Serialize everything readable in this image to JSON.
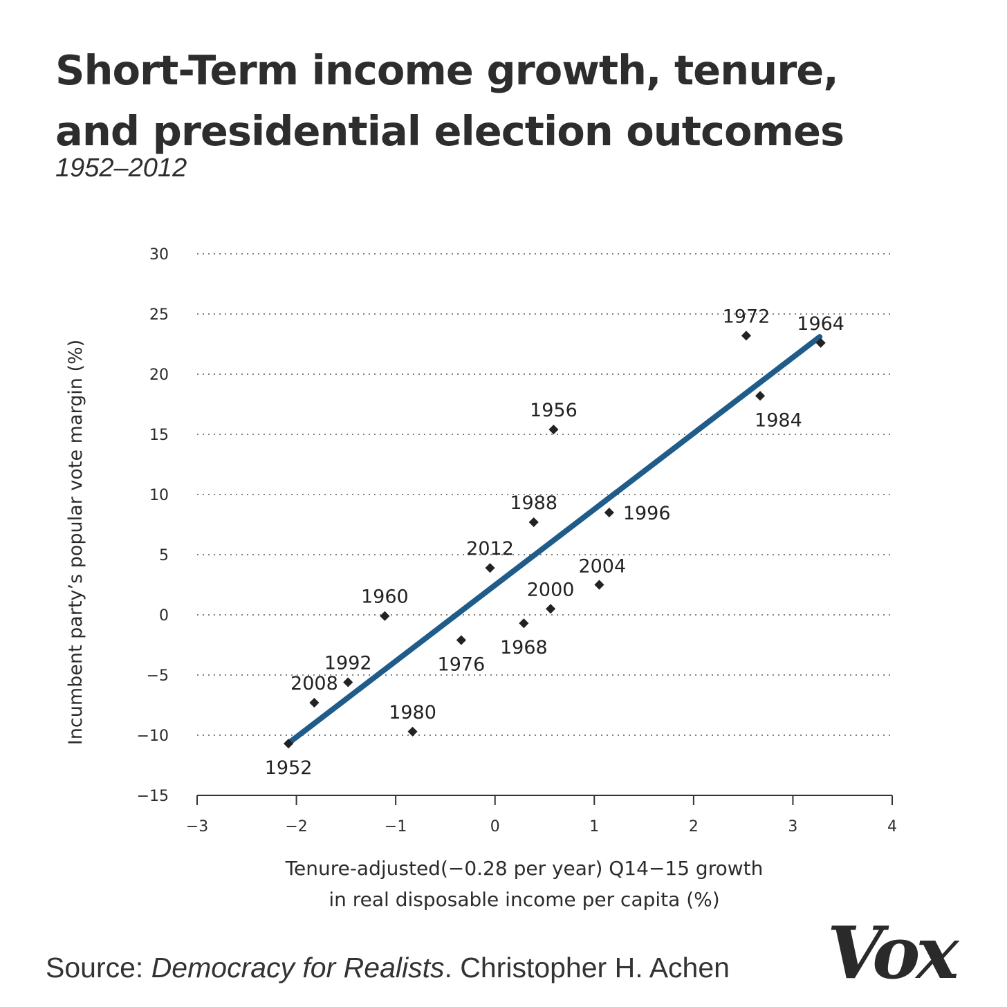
{
  "title_lines": [
    "Short-Term income growth, tenure,",
    "and presidential election outcomes"
  ],
  "subtitle": "1952–2012",
  "source": {
    "prefix": "Source: ",
    "book": "Democracy for Realists",
    "suffix": ". Christopher H. Achen"
  },
  "logo": "Vox",
  "colors": {
    "trend_line": "#1f5c8a",
    "points": "#222222",
    "grid": "#555555"
  },
  "chart_data": {
    "type": "scatter",
    "title": "Short-Term income growth, tenure, and presidential election outcomes",
    "subtitle": "1952–2012",
    "xlabel_lines": [
      "Tenure-adjusted(−0.28 per year) Q14−15 growth",
      "in real disposable income per capita (%)"
    ],
    "ylabel": "Incumbent party’s popular vote margin (%)",
    "xlim": [
      -3,
      4
    ],
    "ylim": [
      -15,
      30
    ],
    "xticks": [
      -3,
      -2,
      -1,
      0,
      1,
      2,
      3,
      4
    ],
    "xtick_labels": [
      "−3",
      "−2",
      "−1",
      "0",
      "1",
      "2",
      "3",
      "4"
    ],
    "yticks": [
      30,
      25,
      20,
      15,
      10,
      5,
      0,
      -5,
      -10,
      -15
    ],
    "ytick_labels": [
      "30",
      "25",
      "20",
      "15",
      "10",
      "5",
      "0",
      "−5",
      "−10",
      "−15"
    ],
    "grid": "horizontal dotted",
    "points": [
      {
        "label": "1952",
        "x": -2.08,
        "y": -10.7,
        "label_pos": "below"
      },
      {
        "label": "1956",
        "x": 0.59,
        "y": 15.4,
        "label_pos": "above"
      },
      {
        "label": "1960",
        "x": -1.11,
        "y": -0.1,
        "label_pos": "above"
      },
      {
        "label": "1964",
        "x": 3.28,
        "y": 22.6,
        "label_pos": "above"
      },
      {
        "label": "1968",
        "x": 0.29,
        "y": -0.7,
        "label_pos": "below"
      },
      {
        "label": "1972",
        "x": 2.53,
        "y": 23.2,
        "label_pos": "above"
      },
      {
        "label": "1976",
        "x": -0.34,
        "y": -2.1,
        "label_pos": "below"
      },
      {
        "label": "1980",
        "x": -0.83,
        "y": -9.7,
        "label_pos": "above"
      },
      {
        "label": "1984",
        "x": 2.67,
        "y": 18.2,
        "label_pos": "below-right"
      },
      {
        "label": "1988",
        "x": 0.39,
        "y": 7.7,
        "label_pos": "above"
      },
      {
        "label": "1992",
        "x": -1.48,
        "y": -5.6,
        "label_pos": "above"
      },
      {
        "label": "1996",
        "x": 1.15,
        "y": 8.5,
        "label_pos": "right"
      },
      {
        "label": "2000",
        "x": 0.56,
        "y": 0.5,
        "label_pos": "above"
      },
      {
        "label": "2004",
        "x": 1.05,
        "y": 2.5,
        "label_pos": "above-right"
      },
      {
        "label": "2008",
        "x": -1.82,
        "y": -7.3,
        "label_pos": "above"
      },
      {
        "label": "2012",
        "x": -0.05,
        "y": 3.9,
        "label_pos": "above"
      }
    ],
    "trend_line": {
      "x": [
        -2.07,
        3.27
      ],
      "y": [
        -10.6,
        23.1
      ]
    }
  }
}
